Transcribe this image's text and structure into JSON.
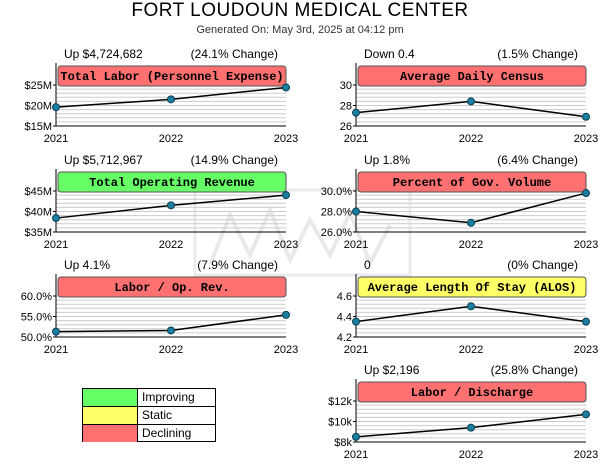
{
  "header": {
    "title": "FORT LOUDOUN MEDICAL CENTER",
    "subtitle": "Generated On: May 3rd, 2025 at 04:12 pm"
  },
  "legend": [
    {
      "label": "Improving",
      "color": "#66ff66"
    },
    {
      "label": "Static",
      "color": "#ffff66"
    },
    {
      "label": "Declining",
      "color": "#ff7070"
    }
  ],
  "colors": {
    "improving": "#66ff66",
    "static": "#ffff66",
    "declining": "#ff7070",
    "marker": "#1a7fa0",
    "line": "#000000",
    "grid": "#cccccc"
  },
  "chart_data": [
    {
      "id": "total-labor",
      "type": "line",
      "title": "Total Labor (Personnel Expense)",
      "status": "declining",
      "stat_left": "Up $4,724,682",
      "stat_right": "(24.1% Change)",
      "categories": [
        "2021",
        "2022",
        "2023"
      ],
      "values": [
        19.6,
        21.5,
        24.4
      ],
      "ylim": [
        15,
        25
      ],
      "yticks": [
        15,
        20,
        25
      ],
      "ytick_labels": [
        "$15M",
        "$20M",
        "$25M"
      ]
    },
    {
      "id": "average-daily-census",
      "type": "line",
      "title": "Average Daily Census",
      "status": "declining",
      "stat_left": "Down 0.4",
      "stat_right": "(1.5% Change)",
      "categories": [
        "2021",
        "2022",
        "2023"
      ],
      "values": [
        27.3,
        28.4,
        26.9
      ],
      "ylim": [
        26,
        30
      ],
      "yticks": [
        26,
        28,
        30
      ],
      "ytick_labels": [
        "26",
        "28",
        "30"
      ]
    },
    {
      "id": "total-operating-revenue",
      "type": "line",
      "title": "Total Operating Revenue",
      "status": "improving",
      "stat_left": "Up $5,712,967",
      "stat_right": "(14.9% Change)",
      "categories": [
        "2021",
        "2022",
        "2023"
      ],
      "values": [
        38.4,
        41.5,
        44.0
      ],
      "ylim": [
        35,
        45
      ],
      "yticks": [
        35,
        40,
        45
      ],
      "ytick_labels": [
        "$35M",
        "$40M",
        "$45M"
      ]
    },
    {
      "id": "percent-gov-volume",
      "type": "line",
      "title": "Percent of Gov. Volume",
      "status": "declining",
      "stat_left": "Up 1.8%",
      "stat_right": "(6.4% Change)",
      "categories": [
        "2021",
        "2022",
        "2023"
      ],
      "values": [
        28.0,
        26.9,
        29.8
      ],
      "ylim": [
        26,
        30
      ],
      "yticks": [
        26,
        28,
        30
      ],
      "ytick_labels": [
        "26.0%",
        "28.0%",
        "30.0%"
      ]
    },
    {
      "id": "labor-op-rev",
      "type": "line",
      "title": "Labor / Op. Rev.",
      "status": "declining",
      "stat_left": "Up 4.1%",
      "stat_right": "(7.9% Change)",
      "categories": [
        "2021",
        "2022",
        "2023"
      ],
      "values": [
        51.3,
        51.6,
        55.4
      ],
      "ylim": [
        50,
        60
      ],
      "yticks": [
        50,
        55,
        60
      ],
      "ytick_labels": [
        "50.0%",
        "55.0%",
        "60.0%"
      ]
    },
    {
      "id": "average-length-of-stay",
      "type": "line",
      "title": "Average Length Of Stay (ALOS)",
      "status": "static",
      "stat_left": "0",
      "stat_right": "(0% Change)",
      "categories": [
        "2021",
        "2022",
        "2023"
      ],
      "values": [
        4.35,
        4.5,
        4.35
      ],
      "ylim": [
        4.2,
        4.6
      ],
      "yticks": [
        4.2,
        4.4,
        4.6
      ],
      "ytick_labels": [
        "4.2",
        "4.4",
        "4.6"
      ]
    },
    {
      "id": "labor-discharge",
      "type": "line",
      "title": "Labor / Discharge",
      "status": "declining",
      "stat_left": "Up $2,196",
      "stat_right": "(25.8% Change)",
      "categories": [
        "2021",
        "2022",
        "2023"
      ],
      "values": [
        8.5,
        9.4,
        10.7
      ],
      "ylim": [
        8,
        12
      ],
      "yticks": [
        8,
        10,
        12
      ],
      "ytick_labels": [
        "$8k",
        "$10k",
        "$12k"
      ]
    }
  ]
}
